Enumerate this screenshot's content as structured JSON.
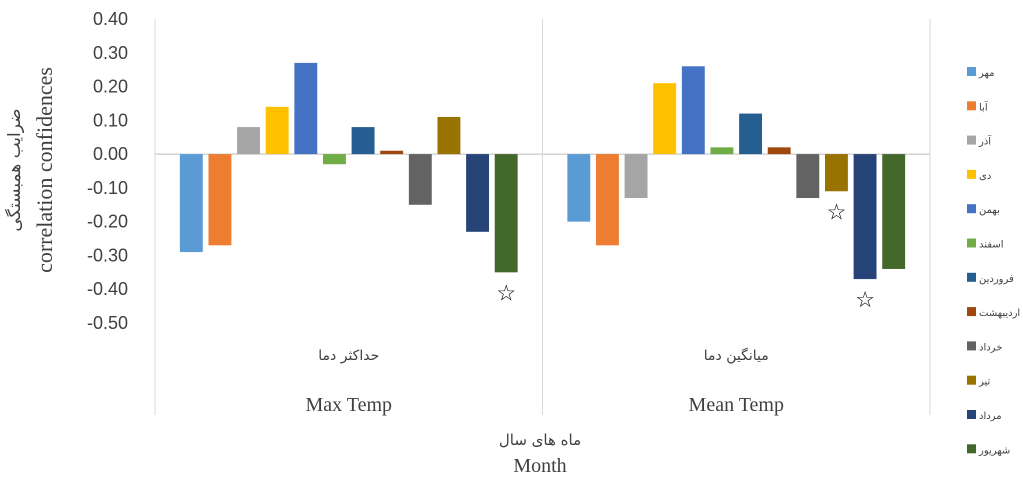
{
  "chart_data": {
    "type": "bar",
    "ylabel_fa": "ضرایب همبستگی",
    "ylabel_en": "correlation confidences",
    "xlabel_fa": "ماه های سال",
    "xlabel_en": "Month",
    "ylim": [
      -0.5,
      0.4
    ],
    "yticks": [
      "0.40",
      "0.30",
      "0.20",
      "0.10",
      "0.00",
      "-0.10",
      "-0.20",
      "-0.30",
      "-0.40",
      "-0.50"
    ],
    "ytick_values": [
      0.4,
      0.3,
      0.2,
      0.1,
      0.0,
      -0.1,
      -0.2,
      -0.3,
      -0.4,
      -0.5
    ],
    "legend_position": "right",
    "groups": [
      {
        "label_fa": "حداکثر دما",
        "label_en": "Max Temp"
      },
      {
        "label_fa": "میانگین دما",
        "label_en": "Mean Temp"
      }
    ],
    "series": [
      {
        "name": "مهر",
        "color": "#5B9BD5",
        "values": [
          -0.29,
          -0.2
        ]
      },
      {
        "name": "آبا",
        "color": "#ED7D31",
        "values": [
          -0.27,
          -0.27
        ]
      },
      {
        "name": "آذر",
        "color": "#A5A5A5",
        "values": [
          0.08,
          -0.13
        ]
      },
      {
        "name": "دی",
        "color": "#FFC000",
        "values": [
          0.14,
          0.21
        ]
      },
      {
        "name": "بهمن",
        "color": "#4472C4",
        "values": [
          0.27,
          0.26
        ]
      },
      {
        "name": "اسفند",
        "color": "#70AD47",
        "values": [
          -0.03,
          0.02
        ]
      },
      {
        "name": "فروردین",
        "color": "#255E91",
        "values": [
          0.08,
          0.12
        ]
      },
      {
        "name": "اردیبهشت",
        "color": "#9E480E",
        "values": [
          0.01,
          0.02
        ]
      },
      {
        "name": "خرداد",
        "color": "#636363",
        "values": [
          -0.15,
          -0.13
        ]
      },
      {
        "name": "تیر",
        "color": "#997300",
        "values": [
          0.11,
          -0.11
        ]
      },
      {
        "name": "مرداد",
        "color": "#264478",
        "values": [
          -0.23,
          -0.37
        ]
      },
      {
        "name": "شهریور",
        "color": "#43682B",
        "values": [
          -0.35,
          -0.34
        ]
      }
    ],
    "significance_markers": [
      {
        "group": 0,
        "series": 11,
        "symbol": "☆"
      },
      {
        "group": 1,
        "series": 9,
        "symbol": "☆"
      },
      {
        "group": 1,
        "series": 10,
        "symbol": "☆"
      }
    ]
  }
}
